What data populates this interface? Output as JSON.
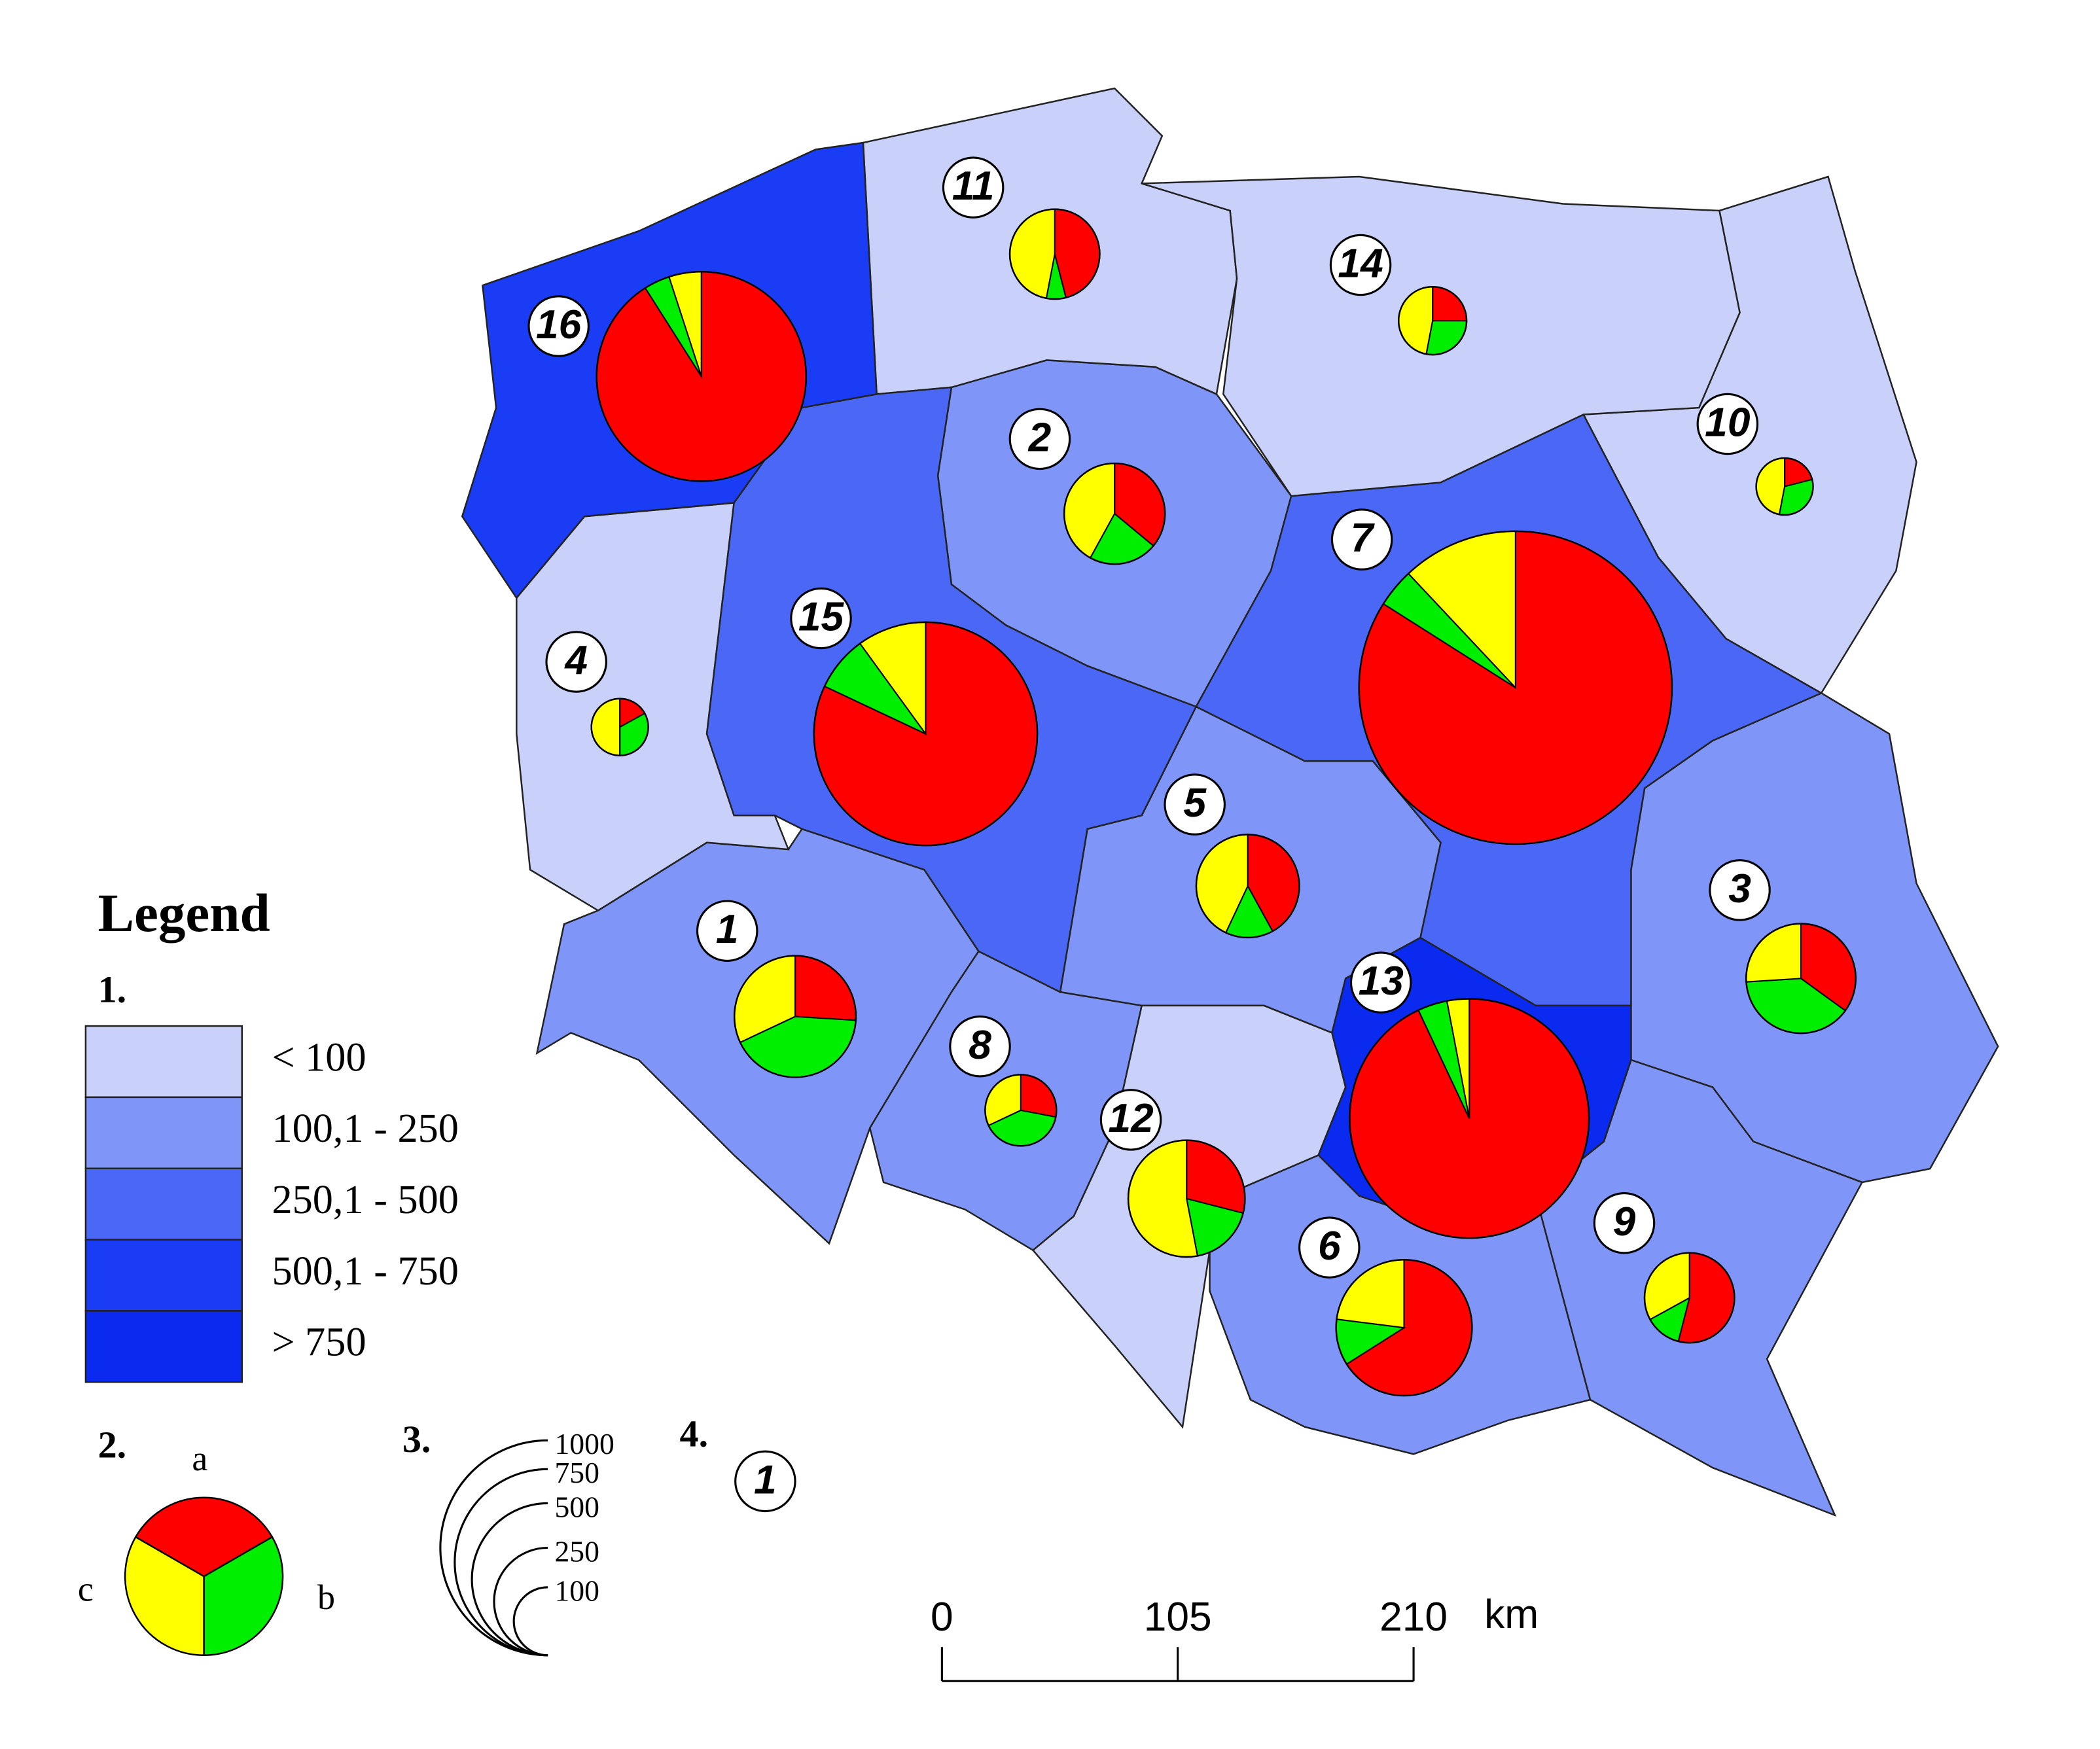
{
  "legend": {
    "title": "Legend",
    "section_1": "1.",
    "classes": [
      "< 100",
      "100,1 - 250",
      "250,1 - 500",
      "500,1 - 750",
      "> 750"
    ],
    "class_colors": [
      "#c9d1fb",
      "#7f96f8",
      "#4a68f5",
      "#1a3cf4",
      "#0a2af0"
    ],
    "section_2": "2.",
    "pie_labels": {
      "a": "a",
      "b": "b",
      "c": "c"
    },
    "pie_colors": {
      "a": "#ff0000",
      "b": "#00ee00",
      "c": "#ffff00"
    },
    "section_3": "3.",
    "size_ticks": [
      1000,
      750,
      500,
      250,
      100
    ],
    "section_4": "4.",
    "id_example": "1"
  },
  "scale_bar": {
    "ticks": [
      0,
      105,
      210
    ],
    "unit": "km"
  },
  "regions": [
    {
      "id": "1",
      "class": 1,
      "total": 320,
      "a": 26,
      "b": 42,
      "c": 32
    },
    {
      "id": "2",
      "class": 1,
      "total": 220,
      "a": 36,
      "b": 22,
      "c": 42
    },
    {
      "id": "3",
      "class": 1,
      "total": 260,
      "a": 35,
      "b": 39,
      "c": 26
    },
    {
      "id": "4",
      "class": 0,
      "total": 70,
      "a": 17,
      "b": 33,
      "c": 50
    },
    {
      "id": "5",
      "class": 1,
      "total": 230,
      "a": 42,
      "b": 15,
      "c": 43
    },
    {
      "id": "6",
      "class": 1,
      "total": 400,
      "a": 66,
      "b": 11,
      "c": 23
    },
    {
      "id": "7",
      "class": 2,
      "total": 2120,
      "a": 84,
      "b": 4,
      "c": 12
    },
    {
      "id": "8",
      "class": 1,
      "total": 110,
      "a": 28,
      "b": 40,
      "c": 32
    },
    {
      "id": "9",
      "class": 1,
      "total": 175,
      "a": 54,
      "b": 13,
      "c": 33
    },
    {
      "id": "10",
      "class": 0,
      "total": 70,
      "a": 21,
      "b": 32,
      "c": 47
    },
    {
      "id": "11",
      "class": 0,
      "total": 175,
      "a": 46,
      "b": 7,
      "c": 47
    },
    {
      "id": "12",
      "class": 0,
      "total": 295,
      "a": 29,
      "b": 18,
      "c": 53
    },
    {
      "id": "13",
      "class": 4,
      "total": 1240,
      "a": 93,
      "b": 4,
      "c": 3
    },
    {
      "id": "14",
      "class": 0,
      "total": 100,
      "a": 25,
      "b": 28,
      "c": 47
    },
    {
      "id": "15",
      "class": 2,
      "total": 1080,
      "a": 82,
      "b": 8,
      "c": 10
    },
    {
      "id": "16",
      "class": 3,
      "total": 950,
      "a": 91,
      "b": 4,
      "c": 5
    }
  ]
}
